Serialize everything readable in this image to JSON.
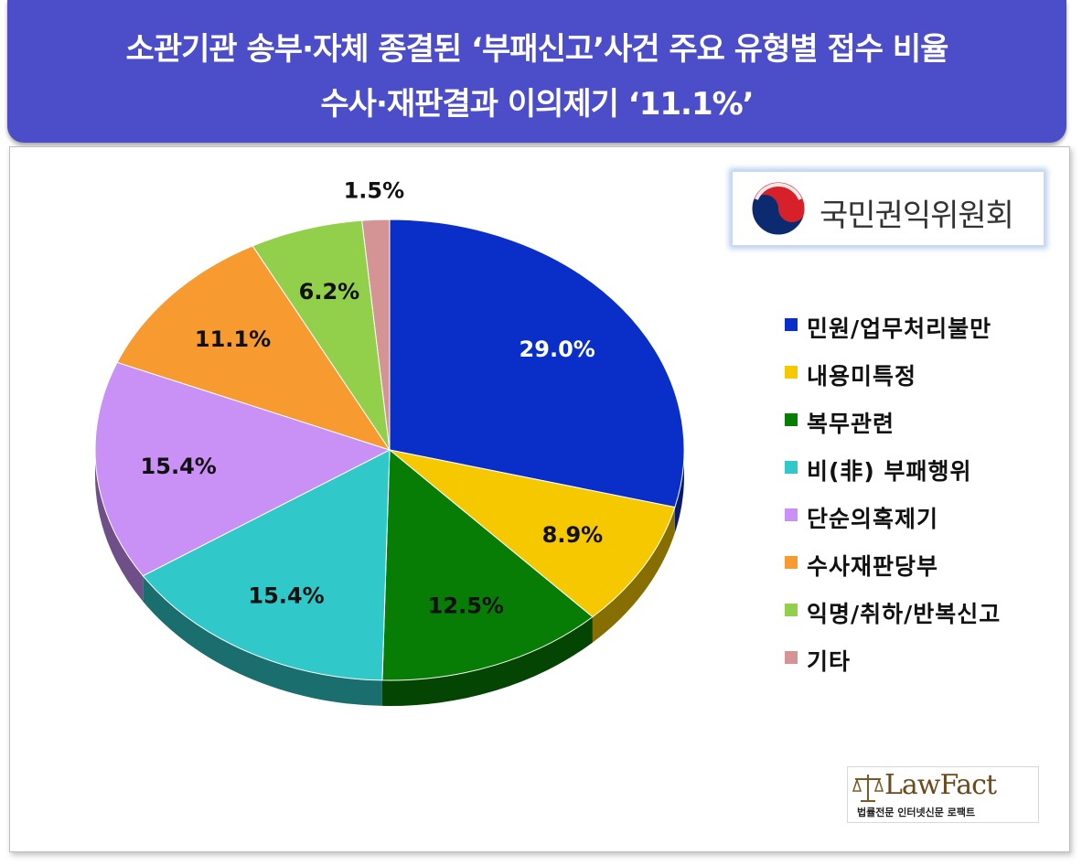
{
  "header": {
    "title_line1": "소관기관 송부·자체 종결된 ‘부패신고’사건 주요 유형별 접수 비율",
    "title_line2": "수사·재판결과 이의제기 ‘11.1%’",
    "background_color": "#4b4ec8"
  },
  "logo": {
    "org_name": "국민권익위원회",
    "icon": "taegeuk-icon"
  },
  "watermark": {
    "brand": "LawFact",
    "tagline": "법률전문 인터넷신문 로팩트",
    "icon": "scales-icon"
  },
  "chart_data": {
    "type": "pie",
    "title": "",
    "legend_position": "right",
    "slices": [
      {
        "label": "민원/업무처리불만",
        "value": 29.0,
        "value_label": "29.0%",
        "color": "#0a2fc8",
        "text_color": "#ffffff"
      },
      {
        "label": "내용미특정",
        "value": 8.9,
        "value_label": "8.9%",
        "color": "#f6c800",
        "text_color": "#111111"
      },
      {
        "label": "복무관련",
        "value": 12.5,
        "value_label": "12.5%",
        "color": "#077d06",
        "text_color": "#111111"
      },
      {
        "label": "비(非) 부패행위",
        "value": 15.4,
        "value_label": "15.4%",
        "color": "#30c8c8",
        "text_color": "#111111"
      },
      {
        "label": "단순의혹제기",
        "value": 15.4,
        "value_label": "15.4%",
        "color": "#c990f5",
        "text_color": "#111111"
      },
      {
        "label": "수사재판당부",
        "value": 11.1,
        "value_label": "11.1%",
        "color": "#f79a30",
        "text_color": "#111111"
      },
      {
        "label": "익명/취하/반복신고",
        "value": 6.2,
        "value_label": "6.2%",
        "color": "#92cf4a",
        "text_color": "#111111"
      },
      {
        "label": "기타",
        "value": 1.5,
        "value_label": "1.5%",
        "color": "#d49494",
        "text_color": "#111111"
      }
    ]
  }
}
